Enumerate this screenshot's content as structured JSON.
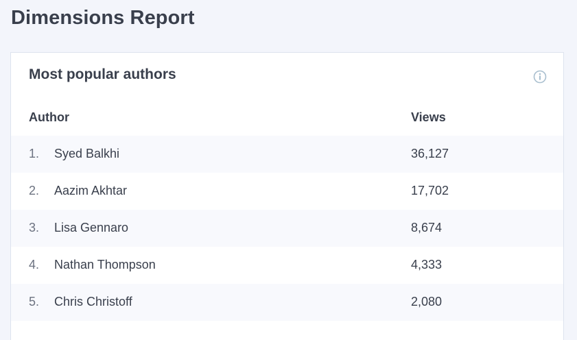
{
  "page": {
    "title": "Dimensions Report"
  },
  "card": {
    "title": "Most popular authors",
    "info_icon": "info-circle-icon",
    "columns": {
      "author": "Author",
      "views": "Views"
    },
    "rows": [
      {
        "rank": "1.",
        "author": "Syed Balkhi",
        "views": "36,127"
      },
      {
        "rank": "2.",
        "author": "Aazim Akhtar",
        "views": "17,702"
      },
      {
        "rank": "3.",
        "author": "Lisa Gennaro",
        "views": "8,674"
      },
      {
        "rank": "4.",
        "author": "Nathan Thompson",
        "views": "4,333"
      },
      {
        "rank": "5.",
        "author": "Chris Christoff",
        "views": "2,080"
      }
    ]
  },
  "colors": {
    "background": "#f3f5fb",
    "text": "#393f4c",
    "row_alt": "#f8f9fd",
    "icon": "#a9bfcf"
  }
}
